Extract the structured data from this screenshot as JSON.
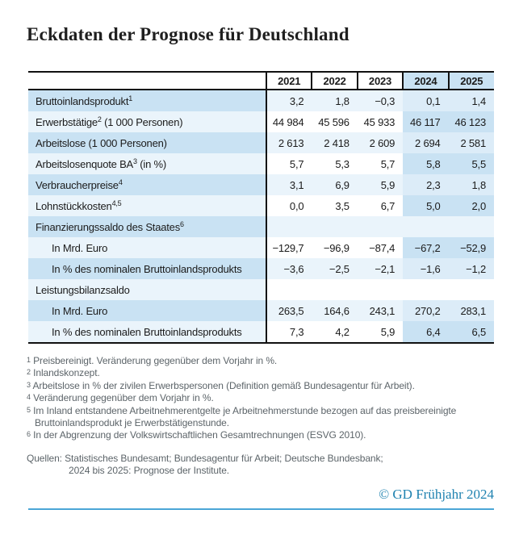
{
  "title": "Eckdaten der Prognose für Deutschland",
  "table": {
    "years": [
      "2021",
      "2022",
      "2023",
      "2024",
      "2025"
    ],
    "forecast_years": [
      "2024",
      "2025"
    ],
    "rows": [
      {
        "pre": "Bruttoinlandsprodukt",
        "sup": "1",
        "post": "",
        "indent": false,
        "section": false,
        "values": [
          "3,2",
          "1,8",
          "−0,3",
          "0,1",
          "1,4"
        ]
      },
      {
        "pre": "Erwerbstätige",
        "sup": "2",
        "post": " (1 000 Personen)",
        "indent": false,
        "section": false,
        "values": [
          "44 984",
          "45 596",
          "45 933",
          "46 117",
          "46 123"
        ]
      },
      {
        "pre": "Arbeitslose (1 000 Personen)",
        "sup": "",
        "post": "",
        "indent": false,
        "section": false,
        "values": [
          "2 613",
          "2 418",
          "2 609",
          "2 694",
          "2 581"
        ]
      },
      {
        "pre": "Arbeitslosenquote BA",
        "sup": "3",
        "post": " (in %)",
        "indent": false,
        "section": false,
        "values": [
          "5,7",
          "5,3",
          "5,7",
          "5,8",
          "5,5"
        ]
      },
      {
        "pre": "Verbraucherpreise",
        "sup": "4",
        "post": "",
        "indent": false,
        "section": false,
        "values": [
          "3,1",
          "6,9",
          "5,9",
          "2,3",
          "1,8"
        ]
      },
      {
        "pre": "Lohnstückkosten",
        "sup": "4,5",
        "post": "",
        "indent": false,
        "section": false,
        "values": [
          "0,0",
          "3,5",
          "6,7",
          "5,0",
          "2,0"
        ]
      },
      {
        "pre": "Finanzierungssaldo des Staates",
        "sup": "6",
        "post": "",
        "indent": false,
        "section": true,
        "values": [
          "",
          "",
          "",
          "",
          ""
        ]
      },
      {
        "pre": "In Mrd. Euro",
        "sup": "",
        "post": "",
        "indent": true,
        "section": false,
        "values": [
          "−129,7",
          "−96,9",
          "−87,4",
          "−67,2",
          "−52,9"
        ]
      },
      {
        "pre": "In % des nominalen Bruttoinlandsprodukts",
        "sup": "",
        "post": "",
        "indent": true,
        "section": false,
        "values": [
          "−3,6",
          "−2,5",
          "−2,1",
          "−1,6",
          "−1,2"
        ]
      },
      {
        "pre": "Leistungsbilanzsaldo",
        "sup": "",
        "post": "",
        "indent": false,
        "section": true,
        "values": [
          "",
          "",
          "",
          "",
          ""
        ]
      },
      {
        "pre": "In Mrd. Euro",
        "sup": "",
        "post": "",
        "indent": true,
        "section": false,
        "values": [
          "263,5",
          "164,6",
          "243,1",
          "270,2",
          "283,1"
        ]
      },
      {
        "pre": "In % des nominalen Bruttoinlandsprodukts",
        "sup": "",
        "post": "",
        "indent": true,
        "section": false,
        "values": [
          "7,3",
          "4,2",
          "5,9",
          "6,4",
          "6,5"
        ]
      }
    ]
  },
  "footnotes": [
    {
      "marker": "1",
      "text": "Preisbereinigt. Veränderung gegenüber dem Vorjahr in %."
    },
    {
      "marker": "2",
      "text": "Inlandskonzept."
    },
    {
      "marker": "3",
      "text": "Arbeitslose in % der zivilen Erwerbspersonen (Definition gemäß Bundesagentur für Arbeit)."
    },
    {
      "marker": "4",
      "text": "Veränderung gegenüber dem Vorjahr in %."
    },
    {
      "marker": "5",
      "text": "Im Inland entstandene Arbeitnehmerentgelte je Arbeitnehmerstunde bezogen auf das preisbereinigte Bruttoinlandsprodukt je Erwerbstätigenstunde."
    },
    {
      "marker": "6",
      "text": "In der Abgrenzung der Volkswirtschaftlichen Gesamtrechnungen (ESVG 2010)."
    }
  ],
  "sources": {
    "line1": "Quellen: Statistisches Bundesamt; Bundesagentur für Arbeit; Deutsche Bundesbank;",
    "line2": "2024 bis 2025: Prognose der Institute."
  },
  "copyright": "© GD Frühjahr 2024",
  "colors": {
    "forecast_highlight": "#c9e2f3",
    "row_tint_light": "#eaf4fb",
    "forecast_tint_mid": "#dcecf8",
    "table_border": "#111111",
    "footnote_gray": "#5c6469",
    "copyright_teal": "#1f82b0",
    "footer_rule_teal": "#4aa6d6"
  },
  "chart_data": {
    "type": "table",
    "title": "Eckdaten der Prognose für Deutschland",
    "columns": [
      2021,
      2022,
      2023,
      2024,
      2025
    ],
    "forecast_columns": [
      2024,
      2025
    ],
    "rows": [
      {
        "label": "Bruttoinlandsprodukt (1)",
        "values": [
          3.2,
          1.8,
          -0.3,
          0.1,
          1.4
        ]
      },
      {
        "label": "Erwerbstätige (2) (1 000 Personen)",
        "values": [
          44984,
          45596,
          45933,
          46117,
          46123
        ]
      },
      {
        "label": "Arbeitslose (1 000 Personen)",
        "values": [
          2613,
          2418,
          2609,
          2694,
          2581
        ]
      },
      {
        "label": "Arbeitslosenquote BA (3) (in %)",
        "values": [
          5.7,
          5.3,
          5.7,
          5.8,
          5.5
        ]
      },
      {
        "label": "Verbraucherpreise (4)",
        "values": [
          3.1,
          6.9,
          5.9,
          2.3,
          1.8
        ]
      },
      {
        "label": "Lohnstückkosten (4,5)",
        "values": [
          0.0,
          3.5,
          6.7,
          5.0,
          2.0
        ]
      },
      {
        "label": "Finanzierungssaldo des Staates (6)",
        "values": [
          null,
          null,
          null,
          null,
          null
        ]
      },
      {
        "label": "Finanzierungssaldo des Staates — In Mrd. Euro",
        "values": [
          -129.7,
          -96.9,
          -87.4,
          -67.2,
          -52.9
        ]
      },
      {
        "label": "Finanzierungssaldo des Staates — In % des nominalen Bruttoinlandsprodukts",
        "values": [
          -3.6,
          -2.5,
          -2.1,
          -1.6,
          -1.2
        ]
      },
      {
        "label": "Leistungsbilanzsaldo",
        "values": [
          null,
          null,
          null,
          null,
          null
        ]
      },
      {
        "label": "Leistungsbilanzsaldo — In Mrd. Euro",
        "values": [
          263.5,
          164.6,
          243.1,
          270.2,
          283.1
        ]
      },
      {
        "label": "Leistungsbilanzsaldo — In % des nominalen Bruttoinlandsprodukts",
        "values": [
          7.3,
          4.2,
          5.9,
          6.4,
          6.5
        ]
      }
    ]
  }
}
